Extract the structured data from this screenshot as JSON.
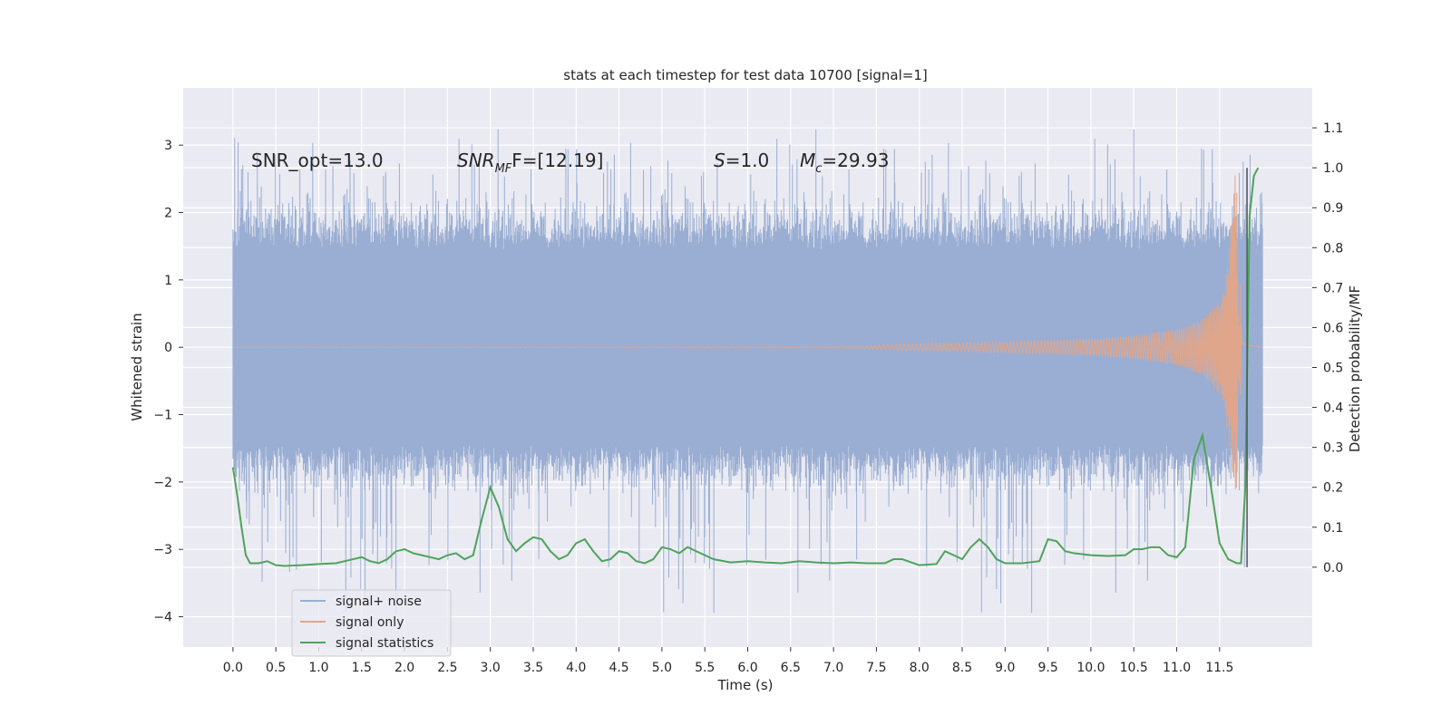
{
  "chart_data": {
    "type": "line",
    "title": "stats at each timestep for test data 10700 [signal=1]",
    "xlabel": "Time (s)",
    "ylabel": "Whitened strain",
    "ylabel_right": "Detection probability/MF",
    "xlim": [
      -0.58,
      12.58
    ],
    "ylim": [
      -4.45,
      3.85
    ],
    "ylim_right": [
      -0.2,
      1.2
    ],
    "grid": true,
    "legend_position": "lower-left",
    "x_ticks": [
      0.0,
      0.5,
      1.0,
      1.5,
      2.0,
      2.5,
      3.0,
      3.5,
      4.0,
      4.5,
      5.0,
      5.5,
      6.0,
      6.5,
      7.0,
      7.5,
      8.0,
      8.5,
      9.0,
      9.5,
      10.0,
      10.5,
      11.0,
      11.5
    ],
    "x_tick_labels": [
      "0.0",
      "0.5",
      "1.0",
      "1.5",
      "2.0",
      "2.5",
      "3.0",
      "3.5",
      "4.0",
      "4.5",
      "5.0",
      "5.5",
      "6.0",
      "6.5",
      "7.0",
      "7.5",
      "8.0",
      "8.5",
      "9.0",
      "9.5",
      "10.0",
      "10.5",
      "11.0",
      "11.5"
    ],
    "y_ticks": [
      3,
      2,
      1,
      0,
      -1,
      -2,
      -3,
      -4
    ],
    "y_tick_labels": [
      "3",
      "2",
      "1",
      "0",
      "−1",
      "−2",
      "−3",
      "−4"
    ],
    "y_right_ticks": [
      1.1,
      1.0,
      0.9,
      0.8,
      0.7,
      0.6,
      0.5,
      0.4,
      0.3,
      0.2,
      0.1,
      0.0
    ],
    "y_right_tick_labels": [
      "1.1",
      "1.0",
      "0.9",
      "0.8",
      "0.7",
      "0.6",
      "0.5",
      "0.4",
      "0.3",
      "0.2",
      "0.1",
      "0.0"
    ],
    "annotations": {
      "snr_opt": "SNR_opt=13.0",
      "snr_mf_main": "SNR",
      "snr_mf_sub": "MF",
      "snr_mf_value": "F=[12.19]",
      "s_sym": "S",
      "s_value": "=1.0",
      "mc_sym": "M",
      "mc_sub": "c",
      "mc_value": "=29.93"
    },
    "series": [
      {
        "name": "signal+ noise",
        "axis": "left",
        "color": "#9aaed3",
        "x_range": [
          0.0,
          12.0
        ],
        "description_values": {
          "typical_abs_max": 1.5,
          "min": -4.05,
          "max": 3.5
        }
      },
      {
        "name": "signal only",
        "axis": "left",
        "color": "#e0a68b",
        "x": [
          0.0,
          7.0,
          8.0,
          9.0,
          10.0,
          10.5,
          11.0,
          11.3,
          11.5,
          11.6,
          11.68,
          11.72,
          11.76,
          12.0
        ],
        "envelope": [
          0.0,
          0.01,
          0.05,
          0.08,
          0.12,
          0.17,
          0.27,
          0.42,
          0.7,
          1.3,
          2.6,
          2.0,
          0.05,
          0.0
        ]
      },
      {
        "name": "signal statistics",
        "axis": "right",
        "color": "#4fa35c",
        "x": [
          0.0,
          0.05,
          0.1,
          0.15,
          0.2,
          0.25,
          0.3,
          0.4,
          0.5,
          0.6,
          0.8,
          1.0,
          1.2,
          1.4,
          1.5,
          1.6,
          1.7,
          1.8,
          1.9,
          2.0,
          2.1,
          2.2,
          2.4,
          2.5,
          2.6,
          2.7,
          2.8,
          2.9,
          3.0,
          3.1,
          3.2,
          3.3,
          3.4,
          3.5,
          3.6,
          3.7,
          3.8,
          3.9,
          4.0,
          4.1,
          4.2,
          4.3,
          4.4,
          4.5,
          4.6,
          4.7,
          4.8,
          4.9,
          5.0,
          5.1,
          5.2,
          5.3,
          5.4,
          5.5,
          5.6,
          5.8,
          6.0,
          6.2,
          6.4,
          6.6,
          6.8,
          7.0,
          7.2,
          7.4,
          7.5,
          7.6,
          7.7,
          7.8,
          8.0,
          8.2,
          8.3,
          8.4,
          8.5,
          8.6,
          8.7,
          8.8,
          8.9,
          9.0,
          9.2,
          9.4,
          9.5,
          9.6,
          9.7,
          9.8,
          10.0,
          10.2,
          10.4,
          10.5,
          10.6,
          10.7,
          10.8,
          10.9,
          11.0,
          11.1,
          11.2,
          11.3,
          11.4,
          11.5,
          11.6,
          11.7,
          11.75,
          11.8,
          11.85,
          11.9,
          11.95
        ],
        "values": [
          0.25,
          0.18,
          0.1,
          0.03,
          0.01,
          0.01,
          0.01,
          0.015,
          0.005,
          0.003,
          0.005,
          0.008,
          0.01,
          0.02,
          0.025,
          0.015,
          0.01,
          0.02,
          0.04,
          0.045,
          0.035,
          0.03,
          0.02,
          0.03,
          0.035,
          0.02,
          0.03,
          0.12,
          0.2,
          0.15,
          0.07,
          0.04,
          0.06,
          0.075,
          0.07,
          0.04,
          0.02,
          0.03,
          0.06,
          0.07,
          0.04,
          0.015,
          0.02,
          0.04,
          0.035,
          0.015,
          0.01,
          0.02,
          0.05,
          0.045,
          0.035,
          0.05,
          0.04,
          0.03,
          0.02,
          0.012,
          0.015,
          0.012,
          0.01,
          0.015,
          0.012,
          0.01,
          0.012,
          0.01,
          0.01,
          0.01,
          0.02,
          0.02,
          0.005,
          0.008,
          0.04,
          0.03,
          0.02,
          0.05,
          0.07,
          0.05,
          0.02,
          0.01,
          0.01,
          0.015,
          0.07,
          0.065,
          0.04,
          0.035,
          0.03,
          0.028,
          0.03,
          0.045,
          0.045,
          0.05,
          0.05,
          0.03,
          0.025,
          0.05,
          0.27,
          0.33,
          0.2,
          0.06,
          0.02,
          0.01,
          0.01,
          0.2,
          0.88,
          0.98,
          1.0
        ],
        "marker_line": {
          "x": 11.82,
          "y_right_from": 0.0,
          "y_right_to": 1.0
        }
      }
    ]
  }
}
